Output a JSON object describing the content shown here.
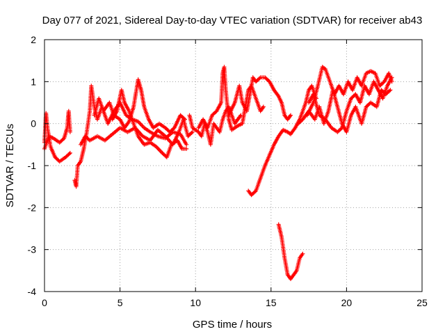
{
  "chart_data": {
    "type": "scatter",
    "title": "Day 077 of 2021, Sidereal Day-to-day VTEC variation (SDTVAR) for receiver ab43",
    "xlabel": "GPS time / hours",
    "ylabel": "SDTVAR / TECUs",
    "xlim": [
      0,
      25
    ],
    "ylim": [
      -4,
      2
    ],
    "xticks": [
      0,
      5,
      10,
      15,
      20,
      25
    ],
    "yticks": [
      -4,
      -3,
      -2,
      -1,
      0,
      1,
      2
    ],
    "xtick_labels": [
      "0",
      "5",
      "10",
      "15",
      "20",
      "25"
    ],
    "ytick_labels": [
      "-4",
      "-3",
      "-2",
      "-1",
      "0",
      "1",
      "2"
    ],
    "grid": true,
    "marker": "+",
    "series": [
      {
        "name": "SDTVAR",
        "color": "#ff0000",
        "tracks": [
          [
            [
              0.0,
              -0.45
            ],
            [
              0.1,
              0.25
            ],
            [
              0.2,
              -0.1
            ],
            [
              0.4,
              -0.55
            ],
            [
              0.7,
              -0.8
            ],
            [
              1.0,
              -0.9
            ],
            [
              1.4,
              -0.8
            ],
            [
              1.7,
              -0.7
            ]
          ],
          [
            [
              0.0,
              -0.6
            ],
            [
              0.3,
              -0.3
            ],
            [
              0.6,
              -0.35
            ],
            [
              1.0,
              -0.45
            ],
            [
              1.3,
              -0.35
            ],
            [
              1.5,
              -0.1
            ],
            [
              1.6,
              0.3
            ],
            [
              1.7,
              -0.2
            ]
          ],
          [
            [
              2.0,
              -1.35
            ],
            [
              2.1,
              -1.5
            ],
            [
              2.2,
              -1.0
            ],
            [
              2.4,
              -0.9
            ],
            [
              2.6,
              -0.6
            ],
            [
              2.8,
              -0.2
            ],
            [
              3.0,
              0.3
            ],
            [
              3.1,
              0.9
            ],
            [
              3.3,
              0.4
            ],
            [
              3.5,
              0.1
            ],
            [
              3.8,
              0.4
            ],
            [
              4.2,
              0.0
            ],
            [
              4.6,
              0.3
            ],
            [
              5.0,
              0.5
            ],
            [
              5.4,
              0.2
            ],
            [
              5.8,
              0.1
            ],
            [
              6.2,
              0.05
            ],
            [
              6.6,
              -0.1
            ],
            [
              7.0,
              -0.2
            ],
            [
              7.5,
              -0.3
            ],
            [
              8.0,
              -0.35
            ],
            [
              8.5,
              -0.2
            ],
            [
              9.0,
              -0.25
            ],
            [
              9.4,
              -0.5
            ]
          ],
          [
            [
              2.4,
              -0.5
            ],
            [
              2.7,
              -0.3
            ],
            [
              3.0,
              -0.4
            ],
            [
              3.5,
              -0.3
            ],
            [
              4.0,
              -0.4
            ],
            [
              4.5,
              -0.25
            ],
            [
              5.0,
              -0.1
            ],
            [
              5.5,
              -0.2
            ],
            [
              6.0,
              -0.1
            ],
            [
              6.5,
              -0.3
            ],
            [
              7.0,
              -0.4
            ],
            [
              7.5,
              -0.15
            ],
            [
              8.0,
              -0.3
            ],
            [
              8.5,
              -0.5
            ],
            [
              8.9,
              -0.2
            ],
            [
              9.2,
              0.1
            ],
            [
              9.5,
              -0.3
            ],
            [
              9.8,
              -0.2
            ]
          ],
          [
            [
              3.3,
              0.2
            ],
            [
              3.6,
              0.6
            ],
            [
              3.9,
              0.3
            ],
            [
              4.3,
              0.5
            ],
            [
              4.6,
              0.2
            ],
            [
              5.0,
              0.1
            ],
            [
              5.3,
              -0.1
            ],
            [
              5.6,
              0.05
            ],
            [
              5.9,
              0.4
            ],
            [
              6.2,
              1.05
            ],
            [
              6.4,
              0.8
            ],
            [
              6.6,
              0.4
            ],
            [
              6.9,
              0.1
            ],
            [
              7.2,
              -0.1
            ],
            [
              7.6,
              0.0
            ],
            [
              8.0,
              -0.1
            ],
            [
              8.3,
              -0.2
            ],
            [
              8.6,
              -0.1
            ],
            [
              9.0,
              0.2
            ],
            [
              9.3,
              0.1
            ]
          ],
          [
            [
              4.5,
              0.1
            ],
            [
              4.8,
              0.3
            ],
            [
              5.1,
              0.8
            ],
            [
              5.3,
              0.5
            ],
            [
              5.6,
              0.3
            ],
            [
              5.9,
              0.0
            ],
            [
              6.2,
              -0.3
            ],
            [
              6.6,
              -0.5
            ],
            [
              7.0,
              -0.45
            ],
            [
              7.4,
              -0.55
            ],
            [
              7.8,
              -0.7
            ],
            [
              8.1,
              -0.8
            ],
            [
              8.4,
              -0.5
            ],
            [
              8.8,
              -0.4
            ],
            [
              9.1,
              -0.6
            ],
            [
              9.4,
              -0.6
            ]
          ],
          [
            [
              9.6,
              0.2
            ],
            [
              9.8,
              -0.1
            ],
            [
              10.2,
              -0.2
            ],
            [
              10.4,
              -0.3
            ],
            [
              10.6,
              0.0
            ],
            [
              10.8,
              -0.2
            ],
            [
              11.0,
              -0.5
            ],
            [
              11.2,
              0.0
            ],
            [
              11.4,
              -0.1
            ],
            [
              11.6,
              -0.2
            ],
            [
              11.8,
              0.1
            ],
            [
              12.0,
              0.3
            ],
            [
              12.2,
              0.4
            ],
            [
              12.4,
              0.2
            ],
            [
              12.6,
              0.0
            ],
            [
              12.8,
              0.1
            ],
            [
              13.0,
              0.2
            ]
          ],
          [
            [
              10.2,
              -0.1
            ],
            [
              10.5,
              0.1
            ],
            [
              10.8,
              -0.1
            ],
            [
              11.1,
              0.2
            ],
            [
              11.4,
              0.3
            ],
            [
              11.7,
              0.5
            ],
            [
              11.8,
              1.2
            ],
            [
              11.9,
              1.35
            ],
            [
              12.0,
              0.8
            ],
            [
              12.2,
              0.1
            ],
            [
              12.4,
              -0.15
            ],
            [
              12.8,
              -0.05
            ],
            [
              13.1,
              0.0
            ],
            [
              13.3,
              0.4
            ],
            [
              13.5,
              0.8
            ],
            [
              13.7,
              0.9
            ],
            [
              13.9,
              0.7
            ],
            [
              14.1,
              0.5
            ],
            [
              14.3,
              0.3
            ],
            [
              14.5,
              0.4
            ]
          ],
          [
            [
              12.2,
              0.2
            ],
            [
              12.6,
              0.5
            ],
            [
              12.9,
              0.9
            ],
            [
              13.1,
              0.5
            ],
            [
              13.4,
              0.3
            ],
            [
              13.6,
              0.7
            ],
            [
              13.8,
              1.1
            ],
            [
              14.0,
              1.0
            ],
            [
              14.3,
              1.1
            ],
            [
              14.6,
              1.1
            ],
            [
              14.9,
              1.0
            ],
            [
              15.2,
              0.8
            ],
            [
              15.5,
              0.65
            ],
            [
              15.7,
              0.5
            ],
            [
              15.9,
              0.2
            ],
            [
              16.1,
              0.1
            ],
            [
              16.3,
              0.2
            ]
          ],
          [
            [
              13.5,
              -1.6
            ],
            [
              13.7,
              -1.7
            ],
            [
              14.0,
              -1.6
            ],
            [
              14.3,
              -1.3
            ],
            [
              14.6,
              -1.0
            ],
            [
              14.9,
              -0.75
            ],
            [
              15.2,
              -0.5
            ],
            [
              15.5,
              -0.3
            ],
            [
              15.8,
              -0.15
            ],
            [
              16.1,
              -0.2
            ],
            [
              16.3,
              -0.25
            ],
            [
              16.6,
              -0.1
            ],
            [
              16.9,
              0.1
            ],
            [
              17.1,
              0.3
            ],
            [
              17.3,
              0.5
            ],
            [
              17.5,
              0.8
            ],
            [
              17.7,
              0.9
            ],
            [
              18.0,
              0.6
            ]
          ],
          [
            [
              15.5,
              -2.4
            ],
            [
              15.7,
              -2.7
            ],
            [
              15.9,
              -3.2
            ],
            [
              16.1,
              -3.6
            ],
            [
              16.3,
              -3.7
            ],
            [
              16.5,
              -3.6
            ],
            [
              16.7,
              -3.5
            ],
            [
              16.9,
              -3.2
            ],
            [
              17.1,
              -3.1
            ]
          ],
          [
            [
              16.8,
              0.0
            ],
            [
              17.1,
              0.1
            ],
            [
              17.5,
              0.3
            ],
            [
              17.9,
              0.1
            ],
            [
              18.2,
              0.4
            ],
            [
              18.5,
              0.0
            ],
            [
              18.8,
              0.3
            ],
            [
              19.1,
              0.8
            ],
            [
              19.4,
              0.4
            ],
            [
              19.7,
              0.0
            ],
            [
              20.0,
              -0.2
            ],
            [
              20.3,
              0.2
            ],
            [
              20.6,
              0.4
            ],
            [
              21.0,
              0.0
            ],
            [
              21.3,
              0.4
            ],
            [
              21.6,
              0.5
            ],
            [
              22.0,
              0.4
            ],
            [
              22.3,
              0.8
            ],
            [
              22.6,
              0.7
            ],
            [
              22.9,
              0.8
            ]
          ],
          [
            [
              17.4,
              0.2
            ],
            [
              17.8,
              0.5
            ],
            [
              18.1,
              0.9
            ],
            [
              18.4,
              1.35
            ],
            [
              18.6,
              1.3
            ],
            [
              18.9,
              1.0
            ],
            [
              19.2,
              0.7
            ],
            [
              19.5,
              0.9
            ],
            [
              19.8,
              0.7
            ],
            [
              20.1,
              1.0
            ],
            [
              20.4,
              0.8
            ],
            [
              20.7,
              1.1
            ],
            [
              21.0,
              0.9
            ],
            [
              21.3,
              1.2
            ],
            [
              21.6,
              1.25
            ],
            [
              21.9,
              1.2
            ],
            [
              22.2,
              0.9
            ],
            [
              22.5,
              1.0
            ],
            [
              22.8,
              1.2
            ],
            [
              23.0,
              1.0
            ]
          ],
          [
            [
              17.5,
              0.5
            ],
            [
              17.8,
              0.7
            ],
            [
              18.2,
              0.2
            ],
            [
              18.6,
              0.1
            ],
            [
              19.0,
              -0.1
            ],
            [
              19.4,
              -0.2
            ],
            [
              19.7,
              -0.1
            ],
            [
              20.0,
              0.3
            ],
            [
              20.3,
              0.6
            ],
            [
              20.6,
              0.7
            ],
            [
              20.9,
              0.5
            ],
            [
              21.2,
              0.9
            ],
            [
              21.5,
              0.7
            ],
            [
              21.8,
              1.0
            ],
            [
              22.1,
              0.8
            ],
            [
              22.4,
              0.6
            ],
            [
              22.7,
              0.9
            ],
            [
              23.0,
              1.1
            ]
          ]
        ]
      }
    ]
  }
}
